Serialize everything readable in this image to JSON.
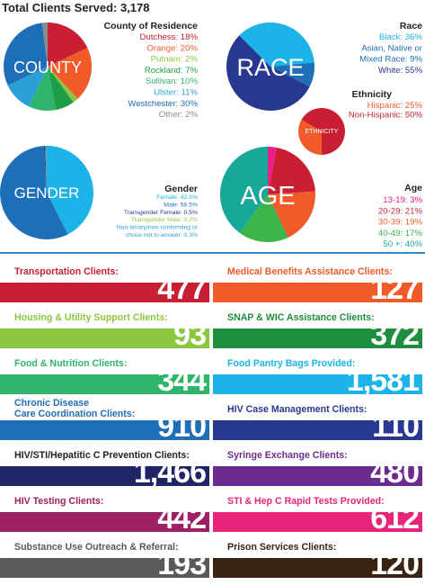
{
  "title": "Total Clients Served: 3,178",
  "chart_data": [
    {
      "type": "pie",
      "label": "COUNTY",
      "title": "County of Residence",
      "slices": [
        {
          "name": "Dutchess",
          "text": "Dutchess: 18%",
          "value": 18,
          "color": "#c81f32"
        },
        {
          "name": "Orange",
          "text": "Orange: 20%",
          "value": 20,
          "color": "#f15a29"
        },
        {
          "name": "Putnam",
          "text": "Putnam: 2%",
          "value": 2,
          "color": "#8dc63f"
        },
        {
          "name": "Rockland",
          "text": "Rockland: 7%",
          "value": 7,
          "color": "#1e9e48"
        },
        {
          "name": "Sullivan",
          "text": "Sullivan: 10%",
          "value": 10,
          "color": "#2fb56b"
        },
        {
          "name": "Ulster",
          "text": "Ulster: 11%",
          "value": 11,
          "color": "#2d9fd8"
        },
        {
          "name": "Westchester",
          "text": "Westchester: 30%",
          "value": 30,
          "color": "#1f6fb8"
        },
        {
          "name": "Other",
          "text": "Other: 2%",
          "value": 2,
          "color": "#8c8c8c"
        }
      ]
    },
    {
      "type": "pie",
      "label": "RACE",
      "title": "Race",
      "slices": [
        {
          "name": "Black",
          "text": "Black: 36%",
          "value": 36,
          "color": "#1cb4e8"
        },
        {
          "name": "Asian, Native or Mixed Race",
          "lines": [
            "Asian, Native or",
            "Mixed Race: 9%"
          ],
          "value": 9,
          "color": "#1f6fb8"
        },
        {
          "name": "White",
          "text": "White: 55%",
          "value": 55,
          "color": "#283891"
        }
      ]
    },
    {
      "type": "pie",
      "label": "ETHNICITY",
      "title": "Ethnicity",
      "slices": [
        {
          "name": "Hispanic",
          "text": "Hispanic: 25%",
          "value": 25,
          "color": "#f15a29"
        },
        {
          "name": "Non-Hispanic",
          "text": "Non-Hispanic: 50%",
          "value": 50,
          "color": "#c81f32"
        }
      ]
    },
    {
      "type": "pie",
      "label": "GENDER",
      "title": "Gender",
      "slices": [
        {
          "name": "Female",
          "text": "Female: 42.5%",
          "value": 42.5,
          "color": "#1cb4e8"
        },
        {
          "name": "Male",
          "text": "Male: 56.5%",
          "value": 56.5,
          "color": "#1f6fb8"
        },
        {
          "name": "Transgender Female",
          "text": "Transgender Female: 0.5%",
          "value": 0.5,
          "color": "#283891"
        },
        {
          "name": "Transgender Male",
          "text": "Transgender Male: 0.2%",
          "value": 0.2,
          "color": "#8dc63f"
        },
        {
          "name": "Non-binary/non-conforming or chose not to answer",
          "lines": [
            "Non-binary/non-conforming or",
            "chose not to answer: 0.3%"
          ],
          "value": 0.3,
          "color": "#2d9fd8"
        }
      ]
    },
    {
      "type": "pie",
      "label": "AGE",
      "title": "Age",
      "slices": [
        {
          "name": "13-19",
          "text": "13-19: 3%",
          "value": 3,
          "color": "#ec1c8c"
        },
        {
          "name": "20-29",
          "text": "20-29: 21%",
          "value": 21,
          "color": "#c81f32"
        },
        {
          "name": "30-39",
          "text": "30-39: 19%",
          "value": 19,
          "color": "#f15a29"
        },
        {
          "name": "40-49",
          "text": "40-49: 17%",
          "value": 17,
          "color": "#39b54a"
        },
        {
          "name": "50 +",
          "text": "50 +: 40%",
          "value": 40,
          "color": "#17a89a"
        }
      ]
    },
    {
      "type": "table",
      "rows": [
        {
          "label": [
            "Transportation Clients:"
          ],
          "value": "477",
          "color": "#c81f32"
        },
        {
          "label": [
            "Medical Benefits Assistance Clients:"
          ],
          "value": "127",
          "color": "#f15a29"
        },
        {
          "label": [
            "Housing & Utility Support Clients:"
          ],
          "value": "93",
          "color": "#8dc63f",
          "value_color": "#8dc63f"
        },
        {
          "label": [
            "SNAP & WIC Assistance Clients:"
          ],
          "value": "372",
          "color": "#1e8f40",
          "value_color": "#1e8f40"
        },
        {
          "label": [
            "Food & Nutrition Clients:"
          ],
          "value": "344",
          "color": "#2fb56b",
          "value_color": "#2fb56b"
        },
        {
          "label": [
            "Food Pantry Bags Provided:"
          ],
          "value": "1,581",
          "color": "#1cb4e8",
          "value_color": "#1cb4e8"
        },
        {
          "label": [
            "Chronic Disease",
            "Care Coordination Clients:"
          ],
          "value": "910",
          "color": "#1f6fb8",
          "value_color": "#1f6fb8"
        },
        {
          "label": [
            "HIV Case Management Clients:"
          ],
          "value": "110",
          "color": "#283891",
          "value_color": "#283891"
        },
        {
          "label": [
            "HIV/STI/Hepatitic C Prevention Clients:"
          ],
          "value": "1,466",
          "color": "#1f2466",
          "value_color": "#222222"
        },
        {
          "label": [
            "Syringe Exchange Clients:"
          ],
          "value": "480",
          "color": "#6a2c91",
          "value_color": "#6a2c91"
        },
        {
          "label": [
            "HIV Testing Clients:"
          ],
          "value": "442",
          "color": "#9e1f63",
          "value_color": "#9e1f63"
        },
        {
          "label": [
            "STI & Hep C Rapid Tests Provided:"
          ],
          "value": "612",
          "color": "#e8257a",
          "value_color": "#e8257a"
        },
        {
          "label": [
            "Substance Use Outreach & Referral:"
          ],
          "value": "193",
          "color": "#58595b",
          "value_color": "#58595b"
        },
        {
          "label": [
            "Prison Services Clients:"
          ],
          "value": "120",
          "color": "#3b2314",
          "value_color": "#3b2314"
        }
      ]
    }
  ]
}
